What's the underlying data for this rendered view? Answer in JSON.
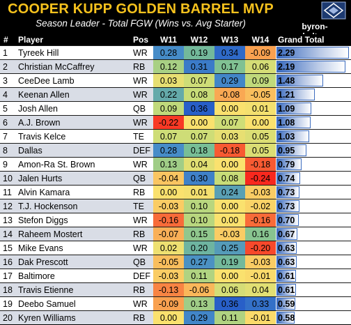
{
  "header": {
    "title": "COOPER KUPP GOLDEN BARREL MVP",
    "subtitle": "Season Leader - Total FGW (Wins vs. Avg Starter)",
    "site": "byron-cobalt.com"
  },
  "columns": {
    "rank": "#",
    "player": "Player",
    "pos": "Pos",
    "w11": "W11",
    "w12": "W12",
    "w13": "W13",
    "w14": "W14",
    "total": "Grand Total"
  },
  "total_max": 2.29,
  "rows": [
    {
      "rank": "1",
      "player": "Tyreek Hill",
      "pos": "WR",
      "w": [
        "0.28",
        "0.19",
        "0.34",
        "-0.09"
      ],
      "total": "2.29"
    },
    {
      "rank": "2",
      "player": "Christian McCaffrey",
      "pos": "RB",
      "w": [
        "0.12",
        "0.31",
        "0.17",
        "0.06"
      ],
      "total": "2.19"
    },
    {
      "rank": "3",
      "player": "CeeDee Lamb",
      "pos": "WR",
      "w": [
        "0.03",
        "0.07",
        "0.29",
        "0.09"
      ],
      "total": "1.48"
    },
    {
      "rank": "4",
      "player": "Keenan Allen",
      "pos": "WR",
      "w": [
        "0.22",
        "0.08",
        "-0.08",
        "-0.05"
      ],
      "total": "1.21"
    },
    {
      "rank": "5",
      "player": "Josh Allen",
      "pos": "QB",
      "w": [
        "0.09",
        "0.36",
        "0.00",
        "0.01"
      ],
      "total": "1.09"
    },
    {
      "rank": "6",
      "player": "A.J. Brown",
      "pos": "WR",
      "w": [
        "-0.22",
        "0.00",
        "0.07",
        "0.00"
      ],
      "total": "1.08"
    },
    {
      "rank": "7",
      "player": "Travis Kelce",
      "pos": "TE",
      "w": [
        "0.07",
        "0.07",
        "0.03",
        "0.05"
      ],
      "total": "1.03"
    },
    {
      "rank": "8",
      "player": "Dallas",
      "pos": "DEF",
      "w": [
        "0.28",
        "0.18",
        "-0.18",
        "0.05"
      ],
      "total": "0.95"
    },
    {
      "rank": "9",
      "player": "Amon-Ra St. Brown",
      "pos": "WR",
      "w": [
        "0.13",
        "0.04",
        "0.00",
        "-0.18"
      ],
      "total": "0.79"
    },
    {
      "rank": "10",
      "player": "Jalen Hurts",
      "pos": "QB",
      "w": [
        "-0.04",
        "0.30",
        "0.08",
        "-0.24"
      ],
      "total": "0.74"
    },
    {
      "rank": "11",
      "player": "Alvin Kamara",
      "pos": "RB",
      "w": [
        "0.00",
        "0.01",
        "0.24",
        "-0.03"
      ],
      "total": "0.73"
    },
    {
      "rank": "12",
      "player": "T.J. Hockenson",
      "pos": "TE",
      "w": [
        "-0.03",
        "0.10",
        "0.00",
        "-0.02"
      ],
      "total": "0.73"
    },
    {
      "rank": "13",
      "player": "Stefon Diggs",
      "pos": "WR",
      "w": [
        "-0.16",
        "0.10",
        "0.00",
        "-0.16"
      ],
      "total": "0.70"
    },
    {
      "rank": "14",
      "player": "Raheem Mostert",
      "pos": "RB",
      "w": [
        "-0.07",
        "0.15",
        "-0.03",
        "0.16"
      ],
      "total": "0.67"
    },
    {
      "rank": "15",
      "player": "Mike Evans",
      "pos": "WR",
      "w": [
        "0.02",
        "0.20",
        "0.25",
        "-0.20"
      ],
      "total": "0.63"
    },
    {
      "rank": "16",
      "player": "Dak Prescott",
      "pos": "QB",
      "w": [
        "-0.05",
        "0.27",
        "0.19",
        "-0.03"
      ],
      "total": "0.63"
    },
    {
      "rank": "17",
      "player": "Baltimore",
      "pos": "DEF",
      "w": [
        "-0.03",
        "0.11",
        "0.00",
        "-0.01"
      ],
      "total": "0.61"
    },
    {
      "rank": "18",
      "player": "Travis Etienne",
      "pos": "RB",
      "w": [
        "-0.13",
        "-0.06",
        "0.06",
        "0.04"
      ],
      "total": "0.61"
    },
    {
      "rank": "19",
      "player": "Deebo Samuel",
      "pos": "WR",
      "w": [
        "-0.09",
        "0.13",
        "0.36",
        "0.33"
      ],
      "total": "0.59"
    },
    {
      "rank": "20",
      "player": "Kyren Williams",
      "pos": "RB",
      "w": [
        "0.00",
        "0.29",
        "0.11",
        "-0.01"
      ],
      "total": "0.58"
    }
  ]
}
